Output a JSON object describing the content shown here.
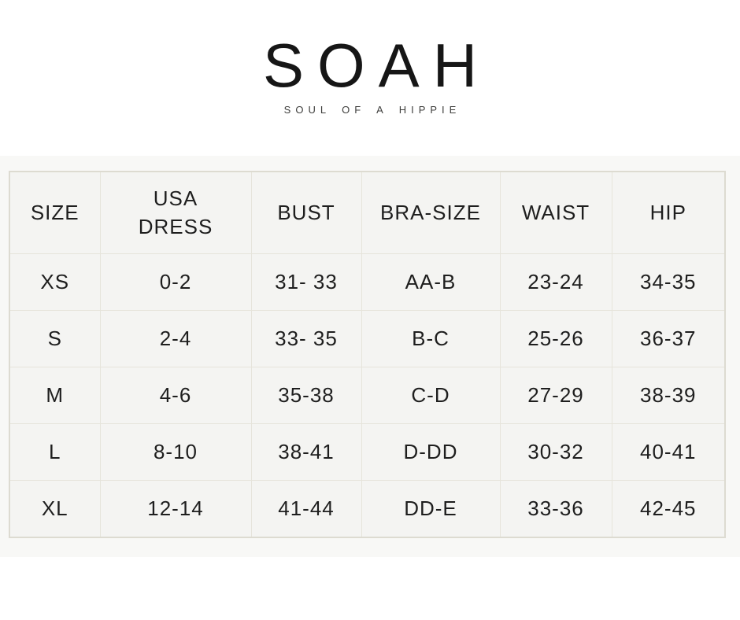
{
  "brand": {
    "name": "SOAH",
    "tagline": "SOUL OF A HIPPIE"
  },
  "size_chart": {
    "columns": [
      "SIZE",
      "USA DRESS",
      "BUST",
      "BRA-SIZE",
      "WAIST",
      "HIP"
    ],
    "rows": [
      [
        "XS",
        "0-2",
        "31- 33",
        "AA-B",
        "23-24",
        "34-35"
      ],
      [
        "S",
        "2-4",
        "33- 35",
        "B-C",
        "25-26",
        "36-37"
      ],
      [
        "M",
        "4-6",
        "35-38",
        "C-D",
        "27-29",
        "38-39"
      ],
      [
        "L",
        "8-10",
        "38-41",
        "D-DD",
        "30-32",
        "40-41"
      ],
      [
        "XL",
        "12-14",
        "41-44",
        "DD-E",
        "33-36",
        "42-45"
      ]
    ]
  },
  "colors": {
    "page_background": "#ffffff",
    "section_background": "#f8f8f6",
    "cell_background": "#f4f4f2",
    "border": "#e6e4db",
    "text": "#1e1e1e"
  }
}
